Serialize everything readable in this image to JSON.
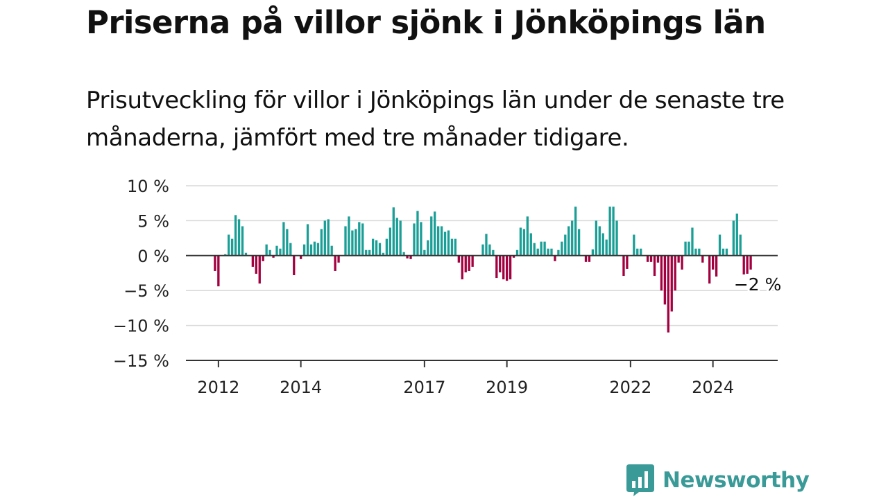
{
  "header": {
    "title": "Priserna på villor sjönk i Jönköpings län",
    "subtitle": "Prisutveckling för villor i Jönköpings län under de senaste tre månaderna, jämfört med tre månader tidigare."
  },
  "logo": {
    "text": "Newsworthy",
    "icon": "newsworthy-chart-icon",
    "color": "#3a9a98"
  },
  "chart_data": {
    "type": "bar",
    "title": "Priserna på villor sjönk i Jönköpings län",
    "subtitle": "Prisutveckling för villor i Jönköpings län under de senaste tre månaderna, jämfört med tre månader tidigare.",
    "xlabel": "",
    "ylabel": "",
    "start": "2011-10",
    "interval": "month",
    "ylim": [
      -15,
      10
    ],
    "y_ticks": [
      10,
      5,
      0,
      -5,
      -10,
      -15
    ],
    "y_tick_labels": [
      "10 %",
      "5 %",
      "0 %",
      "−5 %",
      "−10 %",
      "−15 %"
    ],
    "x_ticks": [
      {
        "date": "2012-01",
        "label": "2012"
      },
      {
        "date": "2014-01",
        "label": "2014"
      },
      {
        "date": "2017-01",
        "label": "2017"
      },
      {
        "date": "2019-01",
        "label": "2019"
      },
      {
        "date": "2022-01",
        "label": "2022"
      },
      {
        "date": "2024-01",
        "label": "2024"
      }
    ],
    "grid": true,
    "colors": {
      "positive": "#1a9e96",
      "negative": "#a3003f"
    },
    "end_label": "−2 %",
    "values": [
      0,
      0,
      -2.2,
      -4.4,
      0,
      0.2,
      3,
      2.4,
      5.8,
      5.2,
      4.2,
      0.4,
      0,
      -1.6,
      -2.6,
      -4,
      -0.8,
      1.6,
      0.8,
      -0.3,
      1.4,
      1,
      4.8,
      3.8,
      1.8,
      -2.8,
      0,
      -0.5,
      1.6,
      4.5,
      1.6,
      2,
      1.8,
      3.8,
      5,
      5.2,
      1.4,
      -2.2,
      -1,
      0,
      4.2,
      5.6,
      3.6,
      3.8,
      4.8,
      4.6,
      0.8,
      0.8,
      2.4,
      2.2,
      1.8,
      0.4,
      2.4,
      4,
      6.9,
      5.4,
      5,
      0.5,
      -0.4,
      -0.5,
      4.6,
      6.4,
      4.8,
      0.8,
      2.2,
      5.6,
      6.3,
      4.2,
      4.2,
      3.4,
      3.6,
      2.4,
      2.4,
      -1,
      -3.4,
      -2.4,
      -2.2,
      -1.6,
      0,
      0,
      1.6,
      3.1,
      1.6,
      0.8,
      -3.2,
      -2.4,
      -3.4,
      -3.6,
      -3.4,
      -0.3,
      0.8,
      4,
      3.8,
      5.6,
      3.2,
      1.8,
      1,
      2,
      2,
      1,
      1,
      -0.8,
      0.8,
      2,
      3,
      4.2,
      5,
      7,
      3.8,
      0,
      -0.9,
      -0.9,
      0.9,
      5,
      4.2,
      3.2,
      2.3,
      7,
      7,
      5,
      0,
      -2.9,
      -1.9,
      0,
      3,
      1,
      1,
      0,
      -0.9,
      -0.9,
      -2.9,
      -1,
      -5,
      -7,
      -11,
      -8,
      -5,
      -1,
      -2,
      2,
      2,
      4,
      1,
      1,
      -1,
      0,
      -4,
      -2,
      -3,
      3,
      1,
      1,
      0,
      5,
      6,
      3,
      -2.7,
      -2.6,
      -2
    ]
  }
}
